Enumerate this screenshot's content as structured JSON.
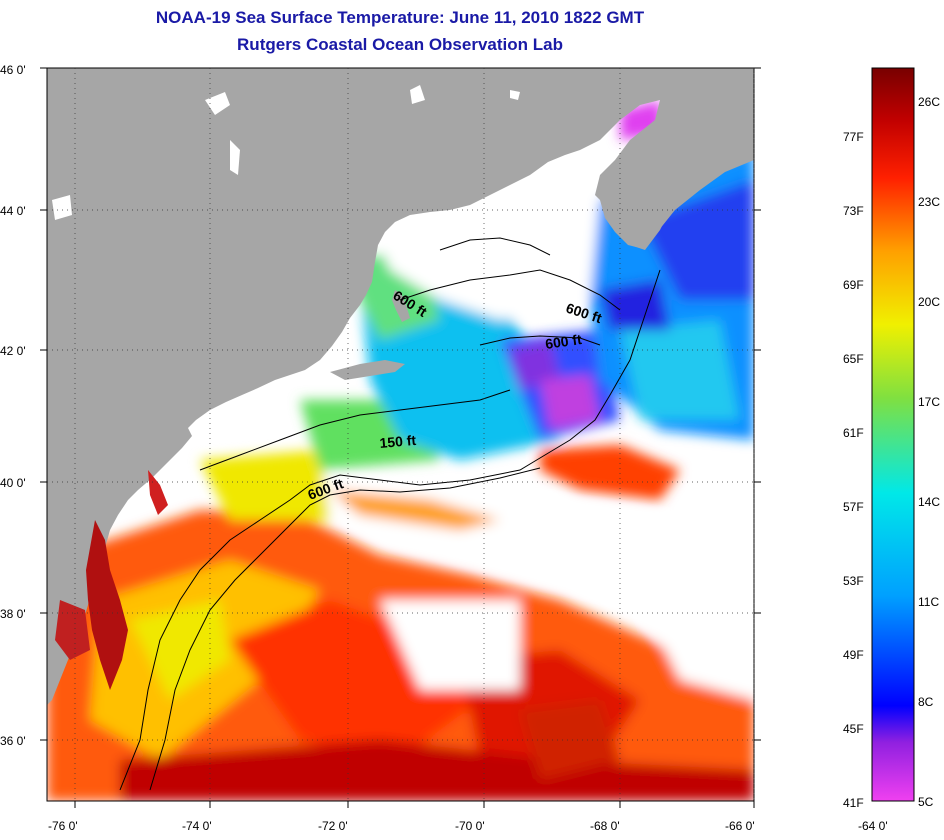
{
  "header": {
    "title": "NOAA-19 Sea Surface Temperature:  June 11, 2010 1822 GMT",
    "subtitle": "Rutgers Coastal Ocean Observation Lab"
  },
  "map": {
    "lat_labels": [
      "46 0'",
      "44 0'",
      "42 0'",
      "40 0'",
      "38 0'",
      "36 0'"
    ],
    "lon_labels": [
      "-76 0'",
      "-74 0'",
      "-72 0'",
      "-70 0'",
      "-68 0'",
      "-66 0'",
      "-64 0'"
    ],
    "depth_labels": [
      "600 ft",
      "600 ft",
      "600 ft",
      "150 ft",
      "600 ft"
    ],
    "land_color": "#a6a6a6",
    "cloud_color": "#ffffff"
  },
  "colorbar": {
    "fahrenheit": [
      "77F",
      "73F",
      "69F",
      "65F",
      "61F",
      "57F",
      "53F",
      "49F",
      "45F",
      "41F"
    ],
    "celsius": [
      "26C",
      "23C",
      "20C",
      "17C",
      "14C",
      "11C",
      "8C",
      "5C"
    ],
    "gradient": [
      "#f040f0",
      "#9020e0",
      "#0000ff",
      "#00a0ff",
      "#00e8e8",
      "#80e040",
      "#f0f000",
      "#ffa000",
      "#ff2000",
      "#c00000",
      "#780000"
    ]
  }
}
